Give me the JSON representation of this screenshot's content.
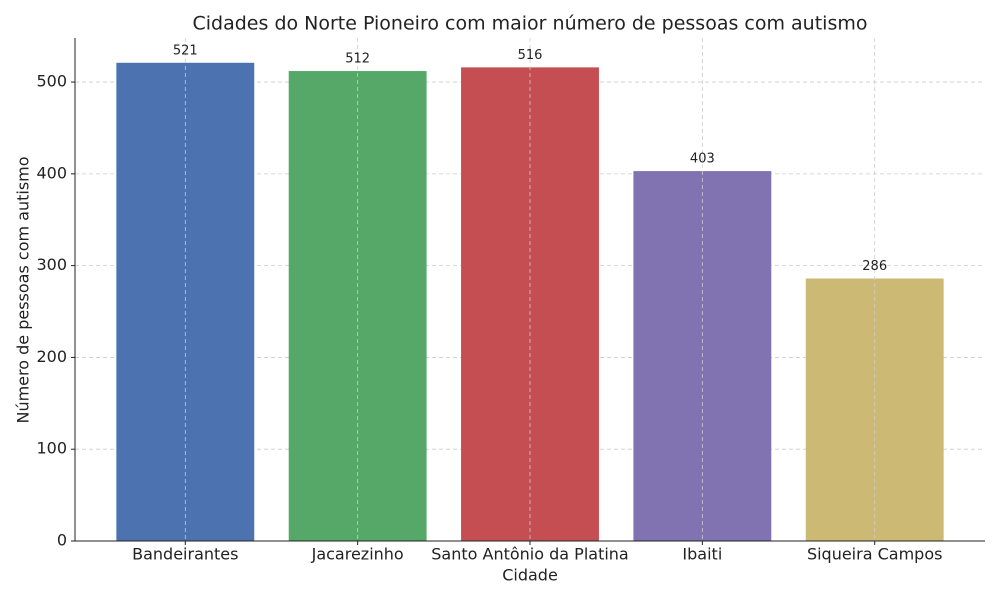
{
  "chart_data": {
    "type": "bar",
    "title": "Cidades do Norte Pioneiro com maior número de pessoas com autismo",
    "x_label": "Cidade",
    "y_label": "Número de pessoas com autismo",
    "categories": [
      "Bandeirantes",
      "Jacarezinho",
      "Santo Antônio da Platina",
      "Ibaiti",
      "Siqueira Campos"
    ],
    "values": [
      521,
      512,
      516,
      403,
      286
    ],
    "colors": [
      "#4c72b0",
      "#55a868",
      "#c44e52",
      "#8172b2",
      "#ccb974"
    ],
    "ylim": [
      0,
      548
    ],
    "yticks": [
      0,
      100,
      200,
      300,
      400,
      500
    ],
    "grid": true
  }
}
